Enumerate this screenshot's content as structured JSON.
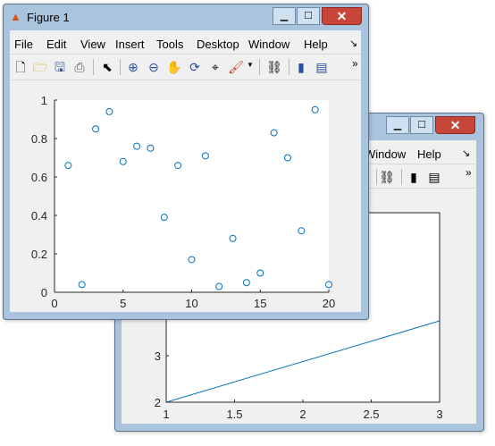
{
  "back_window": {
    "menu": [
      "Window",
      "Help"
    ],
    "menu_arrow": "↘",
    "overflow": "»",
    "chart_data": {
      "type": "line",
      "x": [
        1,
        3
      ],
      "y": [
        2,
        3.75
      ],
      "xlim": [
        1,
        3
      ],
      "x_ticks": [
        "1",
        "1.5",
        "2",
        "2.5",
        "3"
      ],
      "y_ticks_visible": [
        "2",
        "3"
      ],
      "line_color": "#0072bd"
    }
  },
  "front_window": {
    "title": "Figure 1",
    "title_icon": "matlab-logo-icon",
    "menu": [
      "File",
      "Edit",
      "View",
      "Insert",
      "Tools",
      "Desktop",
      "Window",
      "Help"
    ],
    "menu_arrow": "↘",
    "overflow": "»",
    "toolbar_icons": [
      "new-figure-icon",
      "open-file-icon",
      "save-icon",
      "print-icon",
      "pointer-icon",
      "zoom-in-icon",
      "zoom-out-icon",
      "pan-icon",
      "rotate-3d-icon",
      "data-cursor-icon",
      "brush-icon",
      "link-plot-icon",
      "colorbar-icon",
      "legend-icon"
    ],
    "chart_data": {
      "type": "scatter",
      "x": [
        1,
        2,
        3,
        4,
        5,
        6,
        7,
        8,
        9,
        10,
        11,
        12,
        13,
        14,
        15,
        16,
        17,
        18,
        19,
        20
      ],
      "y": [
        0.66,
        0.04,
        0.85,
        0.94,
        0.68,
        0.76,
        0.75,
        0.39,
        0.66,
        0.17,
        0.71,
        0.03,
        0.28,
        0.05,
        0.1,
        0.83,
        0.7,
        0.32,
        0.95,
        0.04
      ],
      "xlim": [
        0,
        20
      ],
      "ylim": [
        0,
        1
      ],
      "x_ticks": [
        "0",
        "5",
        "10",
        "15",
        "20"
      ],
      "y_ticks": [
        "0",
        "0.2",
        "0.4",
        "0.6",
        "0.8",
        "1"
      ],
      "marker": "circle",
      "marker_color": "#0072bd"
    }
  },
  "window_controls": {
    "minimize": "▁",
    "maximize": "☐",
    "close": "✕"
  }
}
